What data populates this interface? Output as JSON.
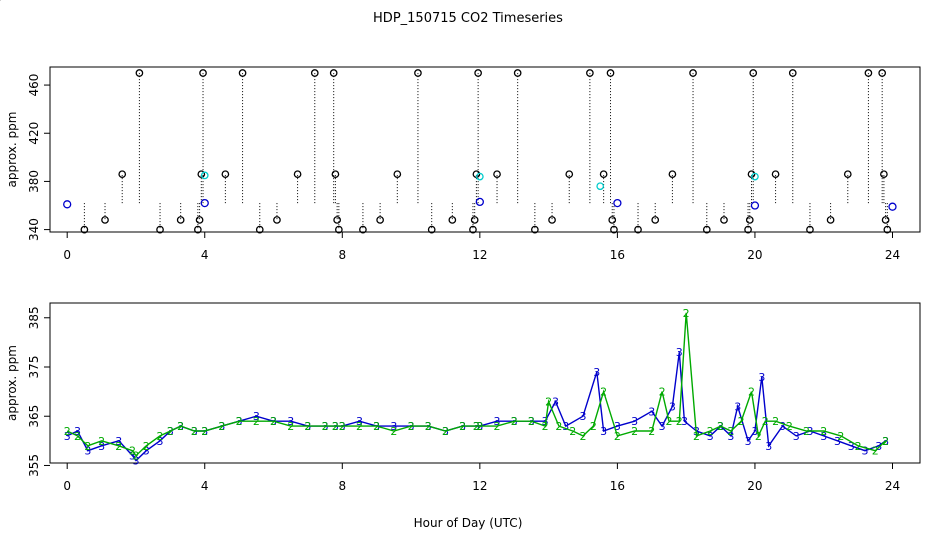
{
  "title": "HDP_150715  CO2 Timeseries",
  "xlabel": "Hour of Day (UTC)",
  "colors": {
    "axis": "#000000",
    "black_series": "#000000",
    "cyan_series": "#00cccc",
    "blue_series": "#0000cc",
    "green_series": "#00aa00"
  },
  "chart_data": [
    {
      "type": "scatter",
      "ylabel": "approx. ppm",
      "xlim": [
        -0.5,
        24.8
      ],
      "ylim": [
        338,
        475
      ],
      "xticks": [
        0,
        4,
        8,
        12,
        16,
        20,
        24
      ],
      "yticks": [
        340,
        380,
        420,
        460
      ],
      "series": [
        {
          "marker": "o",
          "color": "#000000",
          "values": [
            [
              0.5,
              340
            ],
            [
              1.1,
              348
            ],
            [
              1.6,
              386
            ],
            [
              2.1,
              470
            ],
            [
              2.7,
              340
            ],
            [
              3.3,
              348
            ],
            [
              3.8,
              340
            ],
            [
              3.85,
              348
            ],
            [
              3.9,
              386
            ],
            [
              3.95,
              470
            ],
            [
              4.6,
              386
            ],
            [
              5.1,
              470
            ],
            [
              5.6,
              340
            ],
            [
              6.1,
              348
            ],
            [
              6.7,
              386
            ],
            [
              7.2,
              470
            ],
            [
              7.75,
              470
            ],
            [
              7.8,
              386
            ],
            [
              7.85,
              348
            ],
            [
              7.9,
              340
            ],
            [
              8.6,
              340
            ],
            [
              9.1,
              348
            ],
            [
              9.6,
              386
            ],
            [
              10.2,
              470
            ],
            [
              10.6,
              340
            ],
            [
              11.2,
              348
            ],
            [
              11.8,
              340
            ],
            [
              11.85,
              348
            ],
            [
              11.9,
              386
            ],
            [
              11.95,
              470
            ],
            [
              12.5,
              386
            ],
            [
              13.1,
              470
            ],
            [
              13.6,
              340
            ],
            [
              14.1,
              348
            ],
            [
              14.6,
              386
            ],
            [
              15.2,
              470
            ],
            [
              15.6,
              386
            ],
            [
              15.8,
              470
            ],
            [
              15.85,
              348
            ],
            [
              15.9,
              340
            ],
            [
              16.6,
              340
            ],
            [
              17.1,
              348
            ],
            [
              17.6,
              386
            ],
            [
              18.2,
              470
            ],
            [
              18.6,
              340
            ],
            [
              19.1,
              348
            ],
            [
              19.8,
              340
            ],
            [
              19.85,
              348
            ],
            [
              19.9,
              386
            ],
            [
              19.95,
              470
            ],
            [
              20.6,
              386
            ],
            [
              21.1,
              470
            ],
            [
              21.6,
              340
            ],
            [
              22.2,
              348
            ],
            [
              22.7,
              386
            ],
            [
              23.3,
              470
            ],
            [
              23.7,
              470
            ],
            [
              23.75,
              386
            ],
            [
              23.8,
              348
            ],
            [
              23.85,
              340
            ]
          ]
        },
        {
          "marker": "o",
          "color": "#00cccc",
          "values": [
            [
              4.0,
              385
            ],
            [
              12.0,
              384
            ],
            [
              15.5,
              376
            ],
            [
              20.0,
              384
            ]
          ]
        },
        {
          "marker": "o",
          "color": "#0000cc",
          "values": [
            [
              0.0,
              361
            ],
            [
              4.0,
              362
            ],
            [
              12.0,
              363
            ],
            [
              16.0,
              362
            ],
            [
              20.0,
              360
            ],
            [
              24.0,
              359
            ]
          ]
        }
      ]
    },
    {
      "type": "line",
      "ylabel": "approx. ppm",
      "xlim": [
        -0.5,
        24.8
      ],
      "ylim": [
        355.5,
        388
      ],
      "xticks": [
        0,
        4,
        8,
        12,
        16,
        20,
        24
      ],
      "yticks": [
        355,
        365,
        375,
        385
      ],
      "series": [
        {
          "marker": "3",
          "color": "#0000cc",
          "x": [
            0.0,
            0.3,
            0.6,
            1.0,
            1.5,
            1.9,
            2.0,
            2.3,
            2.7,
            3.0,
            3.3,
            3.7,
            4.0,
            4.5,
            5.0,
            5.5,
            6.0,
            6.5,
            7.0,
            7.5,
            7.8,
            8.0,
            8.5,
            9.0,
            9.5,
            10.0,
            10.5,
            11.0,
            11.5,
            11.9,
            12.0,
            12.5,
            13.0,
            13.5,
            13.9,
            14.2,
            14.5,
            15.0,
            15.4,
            15.6,
            16.0,
            16.5,
            17.0,
            17.3,
            17.6,
            17.8,
            17.95,
            18.3,
            18.7,
            19.0,
            19.3,
            19.5,
            19.8,
            20.0,
            20.2,
            20.4,
            20.8,
            21.2,
            21.6,
            22.0,
            22.4,
            22.8,
            23.2,
            23.6,
            23.8
          ],
          "y": [
            361,
            362,
            358,
            359,
            360,
            357,
            356,
            358,
            360,
            362,
            363,
            362,
            362,
            363,
            364,
            365,
            364,
            364,
            363,
            363,
            363,
            363,
            364,
            363,
            363,
            363,
            363,
            362,
            363,
            363,
            363,
            364,
            364,
            364,
            364,
            368,
            363,
            365,
            374,
            362,
            363,
            364,
            366,
            363,
            367,
            378,
            364,
            362,
            361,
            363,
            361,
            367,
            360,
            362,
            373,
            359,
            363,
            361,
            362,
            361,
            360,
            359,
            358,
            359,
            360
          ]
        },
        {
          "marker": "2",
          "color": "#00aa00",
          "x": [
            0.0,
            0.3,
            0.6,
            1.0,
            1.5,
            1.9,
            2.0,
            2.3,
            2.7,
            3.0,
            3.3,
            3.7,
            4.0,
            4.5,
            5.0,
            5.5,
            6.0,
            6.5,
            7.0,
            7.5,
            7.8,
            8.0,
            8.5,
            9.0,
            9.5,
            10.0,
            10.5,
            11.0,
            11.5,
            11.9,
            12.0,
            12.5,
            13.0,
            13.5,
            13.9,
            14.0,
            14.3,
            14.7,
            15.0,
            15.3,
            15.6,
            16.0,
            16.5,
            17.0,
            17.3,
            17.5,
            17.8,
            18.0,
            18.3,
            18.7,
            19.0,
            19.3,
            19.6,
            19.9,
            20.1,
            20.3,
            20.6,
            21.0,
            21.5,
            22.0,
            22.5,
            23.0,
            23.5,
            23.8
          ],
          "y": [
            362,
            361,
            359,
            360,
            359,
            358,
            357,
            359,
            361,
            362,
            363,
            362,
            362,
            363,
            364,
            364,
            364,
            363,
            363,
            363,
            363,
            363,
            363,
            363,
            362,
            363,
            363,
            362,
            363,
            363,
            363,
            363,
            364,
            364,
            363,
            368,
            363,
            362,
            361,
            363,
            370,
            361,
            362,
            362,
            370,
            364,
            364,
            386,
            361,
            362,
            363,
            362,
            364,
            370,
            361,
            364,
            364,
            363,
            362,
            362,
            361,
            359,
            358,
            360
          ]
        }
      ]
    }
  ]
}
